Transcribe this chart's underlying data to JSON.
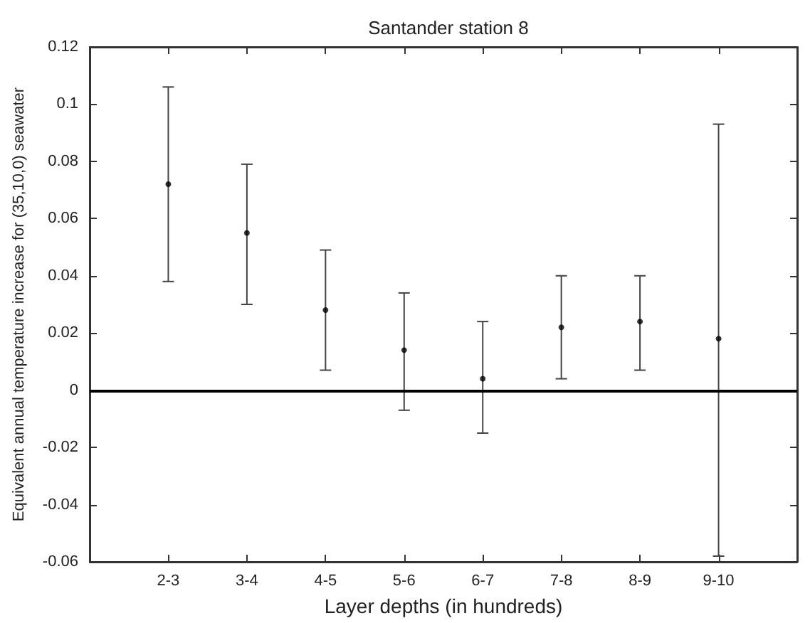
{
  "chart_data": {
    "type": "scatter",
    "title": "Santander station 8",
    "xlabel": "Layer depths (in hundreds)",
    "ylabel": "Equivalent annual temperature increase for (35,10,0) seawater",
    "categories": [
      null,
      "2-3",
      "3-4",
      "4-5",
      "5-6",
      "6-7",
      "7-8",
      "8-9",
      "9-10",
      null
    ],
    "values": [
      null,
      0.072,
      0.055,
      0.028,
      0.014,
      0.004,
      0.022,
      0.024,
      0.018,
      null
    ],
    "errors": [
      null,
      [
        0.038,
        0.106
      ],
      [
        0.03,
        0.079
      ],
      [
        0.007,
        0.049
      ],
      [
        -0.007,
        0.034
      ],
      [
        -0.015,
        0.024
      ],
      [
        0.004,
        0.04
      ],
      [
        0.007,
        0.04
      ],
      [
        -0.058,
        0.093
      ],
      null
    ],
    "color": "#000000",
    "marker": "circle",
    "ylim": [
      -0.06,
      0.12
    ],
    "yticks": [
      -0.06,
      -0.04,
      -0.02,
      0,
      0.02,
      0.04,
      0.06,
      0.08,
      0.1,
      0.12
    ],
    "ref_lines": [
      {
        "axis": "y",
        "value": 0,
        "color": "#000000"
      }
    ],
    "grid": false
  }
}
